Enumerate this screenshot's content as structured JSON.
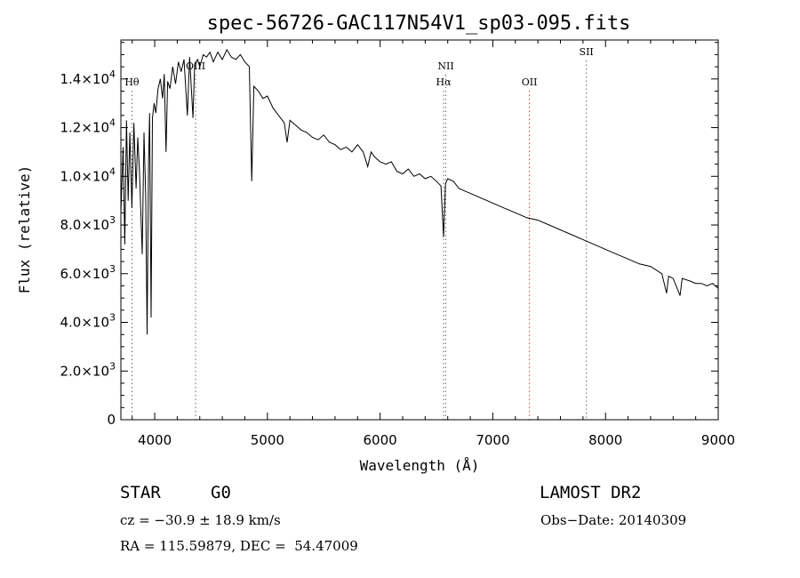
{
  "chart_data": {
    "type": "line",
    "title": "spec-56726-GAC117N54V1_sp03-095.fits",
    "xlabel": "Wavelength (Å)",
    "ylabel": "Flux (relative)",
    "xlim": [
      3700,
      9000
    ],
    "ylim": [
      0,
      15600
    ],
    "x_ticks": [
      4000,
      5000,
      6000,
      7000,
      8000,
      9000
    ],
    "x_tick_labels": [
      "4000",
      "5000",
      "6000",
      "7000",
      "8000",
      "9000"
    ],
    "y_ticks": [
      0,
      2000,
      4000,
      6000,
      8000,
      10000,
      12000,
      14000
    ],
    "y_tick_labels": [
      {
        "mantissa": "0",
        "exp": ""
      },
      {
        "mantissa": "2.0×10",
        "exp": "3"
      },
      {
        "mantissa": "4.0×10",
        "exp": "3"
      },
      {
        "mantissa": "6.0×10",
        "exp": "3"
      },
      {
        "mantissa": "8.0×10",
        "exp": "3"
      },
      {
        "mantissa": "1.0×10",
        "exp": "4"
      },
      {
        "mantissa": "1.2×10",
        "exp": "4"
      },
      {
        "mantissa": "1.4×10",
        "exp": "4"
      }
    ],
    "line_markers": [
      {
        "label": "Hθ",
        "x": 3798,
        "label_row": "upper",
        "color": "#666666"
      },
      {
        "label": "OIII",
        "x": 4363,
        "label_row": "top",
        "color": "#666666"
      },
      {
        "label": "NII",
        "x": 6583,
        "label_row": "top",
        "color": "#666666"
      },
      {
        "label": "Hα",
        "x": 6563,
        "label_row": "upper",
        "color": "#666666"
      },
      {
        "label": "OII",
        "x": 7325,
        "label_row": "upper",
        "color": "#d94040"
      },
      {
        "label": "SII",
        "x": 7830,
        "label_row": "highest",
        "color": "#666666"
      }
    ],
    "series": [
      {
        "color": "#000000",
        "x": [
          3700,
          3720,
          3735,
          3750,
          3765,
          3780,
          3798,
          3815,
          3835,
          3850,
          3865,
          3889,
          3905,
          3920,
          3933,
          3945,
          3955,
          3968,
          3980,
          3995,
          4010,
          4030,
          4050,
          4070,
          4085,
          4101,
          4115,
          4135,
          4160,
          4185,
          4210,
          4235,
          4260,
          4290,
          4310,
          4330,
          4340,
          4355,
          4380,
          4400,
          4430,
          4460,
          4490,
          4520,
          4560,
          4600,
          4640,
          4680,
          4720,
          4760,
          4800,
          4840,
          4861,
          4880,
          4920,
          4960,
          5000,
          5050,
          5100,
          5150,
          5175,
          5200,
          5250,
          5300,
          5350,
          5400,
          5450,
          5500,
          5550,
          5600,
          5650,
          5700,
          5750,
          5800,
          5850,
          5890,
          5920,
          5950,
          6000,
          6050,
          6100,
          6150,
          6200,
          6250,
          6300,
          6350,
          6400,
          6450,
          6500,
          6540,
          6563,
          6580,
          6600,
          6650,
          6700,
          6750,
          6800,
          6850,
          6900,
          6950,
          7000,
          7100,
          7200,
          7300,
          7400,
          7500,
          7600,
          7700,
          7800,
          7900,
          8000,
          8100,
          8200,
          8300,
          8400,
          8500,
          8542,
          8560,
          8600,
          8662,
          8680,
          8750,
          8800,
          8850,
          8900,
          8950,
          9000
        ],
        "y": [
          8500,
          11200,
          7200,
          12300,
          9000,
          11800,
          8700,
          12200,
          9500,
          11600,
          10200,
          6800,
          11800,
          9200,
          3500,
          10500,
          12600,
          4200,
          12400,
          13000,
          12600,
          13600,
          14000,
          13200,
          14200,
          11000,
          13900,
          13600,
          14500,
          13800,
          14700,
          14300,
          14800,
          12500,
          14900,
          13200,
          12400,
          14600,
          14800,
          14500,
          15000,
          14900,
          15100,
          14700,
          15100,
          14800,
          15200,
          14900,
          14800,
          15000,
          14700,
          14500,
          9800,
          13700,
          13500,
          13200,
          13300,
          12800,
          12500,
          12200,
          11400,
          12300,
          12100,
          11900,
          11800,
          11600,
          11500,
          11700,
          11400,
          11300,
          11100,
          11200,
          11000,
          11300,
          11000,
          10400,
          11000,
          10800,
          10600,
          10500,
          10600,
          10200,
          10100,
          10300,
          10000,
          10100,
          9900,
          10000,
          9800,
          9600,
          7500,
          9700,
          9900,
          9800,
          9500,
          9400,
          9300,
          9200,
          9100,
          9000,
          8900,
          8700,
          8500,
          8300,
          8200,
          8000,
          7800,
          7600,
          7400,
          7200,
          7000,
          6800,
          6600,
          6400,
          6300,
          6000,
          5200,
          5900,
          5800,
          5100,
          5800,
          5700,
          5600,
          5600,
          5500,
          5600,
          5400
        ]
      }
    ]
  },
  "info": {
    "object_type": "STAR",
    "subclass": "G0",
    "survey": "LAMOST DR2",
    "cz": "cz = −30.9 ± 18.9 km/s",
    "obs_date": "Obs−Date: 20140309",
    "coords": "RA = 115.59879, DEC =  54.47009"
  }
}
